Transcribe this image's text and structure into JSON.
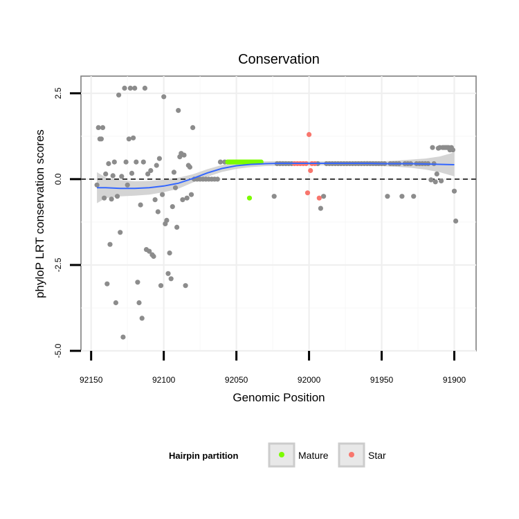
{
  "chart_data": {
    "type": "scatter",
    "title": "Conservation",
    "xlabel": "Genomic Position",
    "ylabel": "phyloP LRT conservation scores",
    "xlim": [
      92157,
      91885
    ],
    "ylim": [
      -5.0,
      3.0
    ],
    "x_reversed": true,
    "x_ticks": [
      92150,
      92100,
      92050,
      92000,
      91950,
      91900
    ],
    "x_tick_labels": [
      "92150",
      "92100",
      "92050",
      "92000",
      "91950",
      "91900"
    ],
    "y_ticks": [
      -5.0,
      -2.5,
      0.0,
      2.5
    ],
    "y_tick_labels": [
      "-5.0",
      "-2.5",
      "0.0",
      "2.5"
    ],
    "reference_line": {
      "y": 0,
      "style": "dashed"
    },
    "grid": true,
    "legend": {
      "title": "Hairpin partition",
      "position": "bottom",
      "entries": [
        {
          "label": "Mature",
          "color": "#7CFC00"
        },
        {
          "label": "Star",
          "color": "#F8766D"
        }
      ]
    },
    "colors": {
      "other": "#8c8c8c",
      "Mature": "#7CFC00",
      "Star": "#F8766D",
      "smooth": "#3366FF",
      "ribbon": "#cccccc"
    },
    "series": [
      {
        "name": "Other",
        "points": [
          [
            92146,
            -0.17
          ],
          [
            92145,
            1.5
          ],
          [
            92144,
            1.17
          ],
          [
            92143,
            1.17
          ],
          [
            92142,
            1.5
          ],
          [
            92141,
            -0.55
          ],
          [
            92140,
            0.15
          ],
          [
            92139,
            -3.05
          ],
          [
            92138,
            0.45
          ],
          [
            92137,
            -1.9
          ],
          [
            92136,
            -0.58
          ],
          [
            92135,
            0.1
          ],
          [
            92134,
            0.5
          ],
          [
            92133,
            -3.6
          ],
          [
            92132,
            -0.5
          ],
          [
            92131,
            2.45
          ],
          [
            92130,
            -1.55
          ],
          [
            92129,
            0.08
          ],
          [
            92128,
            -4.6
          ],
          [
            92127,
            2.65
          ],
          [
            92126,
            0.5
          ],
          [
            92125,
            -0.17
          ],
          [
            92124,
            1.17
          ],
          [
            92123,
            2.65
          ],
          [
            92122,
            0.17
          ],
          [
            92121,
            1.2
          ],
          [
            92120,
            2.65
          ],
          [
            92119,
            0.5
          ],
          [
            92118,
            -3.0
          ],
          [
            92117,
            -3.6
          ],
          [
            92116,
            -0.75
          ],
          [
            92115,
            -4.05
          ],
          [
            92114,
            0.5
          ],
          [
            92113,
            2.65
          ],
          [
            92112,
            -2.05
          ],
          [
            92111,
            0.15
          ],
          [
            92110,
            -2.1
          ],
          [
            92109,
            0.25
          ],
          [
            92108,
            -2.2
          ],
          [
            92107,
            -2.25
          ],
          [
            92106,
            -0.6
          ],
          [
            92105,
            0.4
          ],
          [
            92104,
            -0.95
          ],
          [
            92103,
            0.6
          ],
          [
            92102,
            -3.1
          ],
          [
            92101,
            -0.45
          ],
          [
            92100,
            2.4
          ],
          [
            92099,
            -1.3
          ],
          [
            92098,
            -1.2
          ],
          [
            92097,
            -2.75
          ],
          [
            92096,
            -2.15
          ],
          [
            92095,
            -2.9
          ],
          [
            92094,
            -0.8
          ],
          [
            92093,
            0.2
          ],
          [
            92092,
            -0.25
          ],
          [
            92091,
            -1.4
          ],
          [
            92090,
            2.0
          ],
          [
            92089,
            0.65
          ],
          [
            92088,
            0.75
          ],
          [
            92087,
            -0.6
          ],
          [
            92086,
            0.7
          ],
          [
            92085,
            -3.1
          ],
          [
            92084,
            -0.55
          ],
          [
            92083,
            0.4
          ],
          [
            92082,
            0.35
          ],
          [
            92081,
            -0.45
          ],
          [
            92080,
            1.5
          ],
          [
            92079,
            0.0
          ],
          [
            92077,
            0.0
          ],
          [
            92075,
            0.0
          ],
          [
            92073,
            0.0
          ],
          [
            92071,
            0.0
          ],
          [
            92069,
            0.0
          ],
          [
            92067,
            0.0
          ],
          [
            92065,
            0.0
          ],
          [
            92063,
            0.0
          ],
          [
            92061,
            0.5
          ],
          [
            92058,
            0.5
          ],
          [
            92024,
            -0.5
          ],
          [
            92022,
            0.45
          ],
          [
            92020,
            0.45
          ],
          [
            92018,
            0.45
          ],
          [
            92016,
            0.45
          ],
          [
            92014,
            0.45
          ],
          [
            92012,
            0.45
          ],
          [
            91994,
            0.45
          ],
          [
            91992,
            -0.85
          ],
          [
            91990,
            -0.5
          ],
          [
            91988,
            0.45
          ],
          [
            91986,
            0.45
          ],
          [
            91984,
            0.45
          ],
          [
            91982,
            0.45
          ],
          [
            91980,
            0.45
          ],
          [
            91978,
            0.45
          ],
          [
            91976,
            0.45
          ],
          [
            91974,
            0.45
          ],
          [
            91972,
            0.45
          ],
          [
            91970,
            0.45
          ],
          [
            91968,
            0.45
          ],
          [
            91966,
            0.45
          ],
          [
            91964,
            0.45
          ],
          [
            91962,
            0.45
          ],
          [
            91960,
            0.45
          ],
          [
            91958,
            0.45
          ],
          [
            91956,
            0.45
          ],
          [
            91954,
            0.45
          ],
          [
            91952,
            0.45
          ],
          [
            91950,
            0.45
          ],
          [
            91948,
            0.45
          ],
          [
            91946,
            -0.5
          ],
          [
            91944,
            0.45
          ],
          [
            91942,
            0.45
          ],
          [
            91940,
            0.45
          ],
          [
            91938,
            0.45
          ],
          [
            91936,
            -0.5
          ],
          [
            91934,
            0.45
          ],
          [
            91932,
            0.45
          ],
          [
            91930,
            0.45
          ],
          [
            91928,
            -0.5
          ],
          [
            91926,
            0.45
          ],
          [
            91924,
            0.45
          ],
          [
            91922,
            0.45
          ],
          [
            91920,
            0.45
          ],
          [
            91918,
            0.45
          ],
          [
            91916,
            -0.02
          ],
          [
            91915,
            0.92
          ],
          [
            91914,
            0.45
          ],
          [
            91913,
            -0.08
          ],
          [
            91912,
            0.15
          ],
          [
            91911,
            0.9
          ],
          [
            91910,
            0.92
          ],
          [
            91909,
            -0.05
          ],
          [
            91908,
            0.92
          ],
          [
            91907,
            0.92
          ],
          [
            91906,
            0.92
          ],
          [
            91905,
            0.92
          ],
          [
            91904,
            0.92
          ],
          [
            91903,
            0.85
          ],
          [
            91902,
            0.92
          ],
          [
            91901,
            0.85
          ],
          [
            91900,
            -0.35
          ],
          [
            91899,
            -1.22
          ]
        ]
      },
      {
        "name": "Mature",
        "points": [
          [
            92056,
            0.5
          ],
          [
            92055,
            0.5
          ],
          [
            92054,
            0.5
          ],
          [
            92053,
            0.5
          ],
          [
            92052,
            0.5
          ],
          [
            92051,
            0.5
          ],
          [
            92050,
            0.5
          ],
          [
            92049,
            0.5
          ],
          [
            92048,
            0.5
          ],
          [
            92047,
            0.5
          ],
          [
            92046,
            0.5
          ],
          [
            92045,
            0.5
          ],
          [
            92044,
            0.5
          ],
          [
            92043,
            0.5
          ],
          [
            92042,
            0.5
          ],
          [
            92041,
            0.5
          ],
          [
            92040,
            0.5
          ],
          [
            92039,
            0.5
          ],
          [
            92038,
            0.5
          ],
          [
            92037,
            0.5
          ],
          [
            92036,
            0.5
          ],
          [
            92035,
            0.5
          ],
          [
            92034,
            0.5
          ],
          [
            92033,
            0.5
          ],
          [
            92041,
            -0.55
          ]
        ]
      },
      {
        "name": "Star",
        "points": [
          [
            92010,
            0.45
          ],
          [
            92008,
            0.45
          ],
          [
            92006,
            0.45
          ],
          [
            92004,
            0.45
          ],
          [
            92002,
            0.45
          ],
          [
            92000,
            1.3
          ],
          [
            91999,
            0.25
          ],
          [
            91998,
            0.45
          ],
          [
            91996,
            0.45
          ],
          [
            92001,
            -0.4
          ],
          [
            91993,
            -0.55
          ]
        ]
      }
    ],
    "smooth": {
      "method": "loess",
      "line": [
        [
          92146,
          -0.25
        ],
        [
          92140,
          -0.25
        ],
        [
          92130,
          -0.27
        ],
        [
          92120,
          -0.27
        ],
        [
          92110,
          -0.25
        ],
        [
          92100,
          -0.2
        ],
        [
          92090,
          -0.12
        ],
        [
          92080,
          0.02
        ],
        [
          92070,
          0.18
        ],
        [
          92060,
          0.31
        ],
        [
          92050,
          0.39
        ],
        [
          92040,
          0.43
        ],
        [
          92030,
          0.45
        ],
        [
          92020,
          0.46
        ],
        [
          92010,
          0.46
        ],
        [
          92000,
          0.46
        ],
        [
          91990,
          0.46
        ],
        [
          91980,
          0.46
        ],
        [
          91970,
          0.46
        ],
        [
          91960,
          0.46
        ],
        [
          91950,
          0.45
        ],
        [
          91940,
          0.45
        ],
        [
          91930,
          0.45
        ],
        [
          91920,
          0.44
        ],
        [
          91910,
          0.43
        ],
        [
          91900,
          0.42
        ]
      ],
      "band": [
        [
          92146,
          -0.7,
          0.2
        ],
        [
          92140,
          -0.55,
          0.05
        ],
        [
          92130,
          -0.5,
          -0.03
        ],
        [
          92120,
          -0.48,
          -0.06
        ],
        [
          92110,
          -0.45,
          -0.05
        ],
        [
          92100,
          -0.38,
          -0.02
        ],
        [
          92090,
          -0.28,
          0.04
        ],
        [
          92080,
          -0.1,
          0.14
        ],
        [
          92070,
          0.07,
          0.29
        ],
        [
          92060,
          0.21,
          0.41
        ],
        [
          92050,
          0.3,
          0.48
        ],
        [
          92040,
          0.35,
          0.51
        ],
        [
          92030,
          0.38,
          0.52
        ],
        [
          92020,
          0.39,
          0.53
        ],
        [
          92010,
          0.4,
          0.52
        ],
        [
          92000,
          0.4,
          0.52
        ],
        [
          91990,
          0.4,
          0.52
        ],
        [
          91980,
          0.4,
          0.52
        ],
        [
          91970,
          0.4,
          0.52
        ],
        [
          91960,
          0.39,
          0.53
        ],
        [
          91950,
          0.38,
          0.52
        ],
        [
          91940,
          0.36,
          0.54
        ],
        [
          91930,
          0.33,
          0.57
        ],
        [
          91920,
          0.28,
          0.6
        ],
        [
          91910,
          0.2,
          0.66
        ],
        [
          91900,
          0.08,
          0.78
        ]
      ]
    }
  }
}
